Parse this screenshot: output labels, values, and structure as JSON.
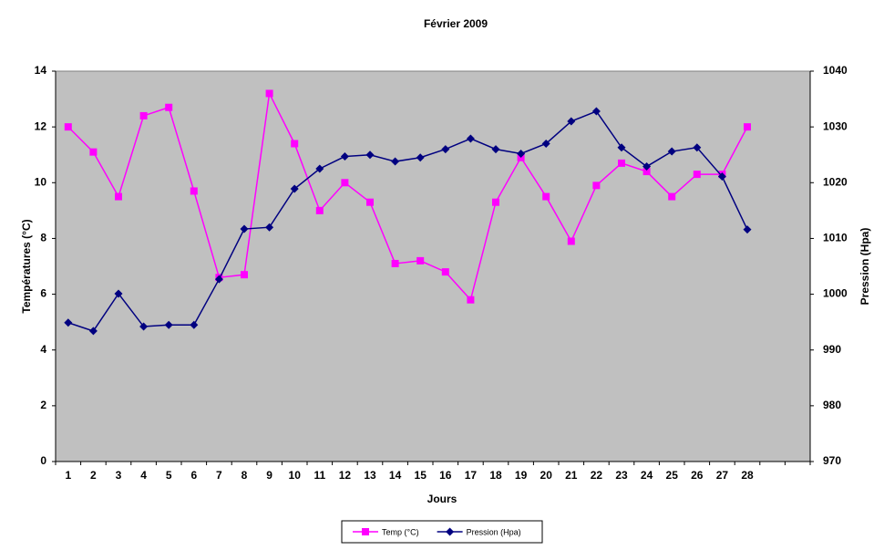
{
  "chart_data": {
    "type": "line",
    "title": "Février 2009",
    "x_label": "Jours",
    "y_label": "Températures (°C)",
    "y2_label": "Pression (Hpa)",
    "categories": [
      "1",
      "2",
      "3",
      "4",
      "5",
      "6",
      "7",
      "8",
      "9",
      "10",
      "11",
      "12",
      "13",
      "14",
      "15",
      "16",
      "17",
      "18",
      "19",
      "20",
      "21",
      "22",
      "23",
      "24",
      "25",
      "26",
      "27",
      "28",
      null,
      null
    ],
    "series": [
      {
        "name": "Temp (°C)",
        "color": "#ff00ff",
        "marker": "square",
        "values": [
          12,
          11.1,
          9.5,
          12.4,
          12.7,
          9.7,
          6.6,
          6.7,
          13.2,
          11.4,
          9,
          10,
          9.3,
          7.1,
          7.2,
          6.8,
          5.8,
          9.3,
          10.9,
          9.5,
          7.9,
          9.9,
          10.7,
          10.4,
          9.5,
          10.3,
          10.3,
          12,
          null,
          null
        ]
      },
      {
        "name": "Pression (Hpa)",
        "color": "#000080",
        "marker": "diamond",
        "axis": "y2",
        "values": [
          994.9,
          993.4,
          1000.1,
          994.2,
          994.5,
          994.5,
          1002.7,
          1011.7,
          1012,
          1018.9,
          1022.5,
          1024.7,
          1025,
          1023.8,
          1024.5,
          1026,
          1027.9,
          1026,
          1025.2,
          1027,
          1031,
          1032.8,
          1026.3,
          1022.9,
          1025.6,
          1026.3,
          1021.1,
          1011.6,
          null,
          null
        ]
      }
    ],
    "ylim": [
      0,
      14
    ],
    "yticks": [
      0,
      2,
      4,
      6,
      8,
      10,
      12,
      14
    ],
    "y2lim": [
      970,
      1040
    ],
    "y2ticks": [
      970,
      980,
      990,
      1000,
      1010,
      1020,
      1030,
      1040
    ],
    "plot_background": "#c0c0c0",
    "legend": "bottom"
  }
}
